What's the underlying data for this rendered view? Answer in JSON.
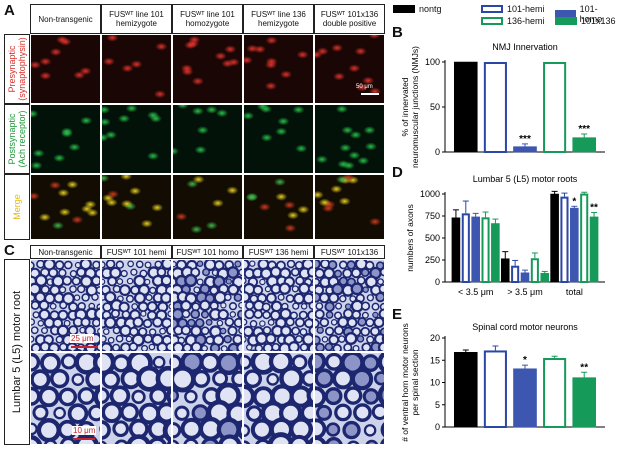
{
  "panel_letters": {
    "a": "A",
    "b": "B",
    "c": "C",
    "d": "D",
    "e": "E"
  },
  "panelA": {
    "columns": [
      "Non-transgenic",
      "FUSᵂᵀ line 101 hemizygote",
      "FUSᵂᵀ line 101 homozygote",
      "FUSᵂᵀ line 136 hemizygote",
      "FUSᵂᵀ 101x136 double positive"
    ],
    "rows": [
      {
        "label": "Presynaptic (synaptophysin)",
        "color": "#d8312b"
      },
      {
        "label": "Postsynaptic (Ach receptor)",
        "color": "#1f9b3a"
      },
      {
        "label": "Merge",
        "color": "#e8b90c"
      }
    ],
    "scale_bar": "50 μm"
  },
  "panelC": {
    "columns": [
      "Non-transgenic",
      "FUSᵂᵀ 101 hemi",
      "FUSᵂᵀ 101 homo",
      "FUSᵂᵀ 136 hemi",
      "FUSᵂᵀ 101x136"
    ],
    "row_label": "Lumbar 5 (L5) motor root",
    "scale_bar_top": "25 μm",
    "scale_bar_bottom": "10 μm"
  },
  "legend": [
    {
      "name": "nontg",
      "fill": "#000000",
      "stroke": "#000000"
    },
    {
      "name": "101-hemi",
      "fill": "#ffffff",
      "stroke": "#2a46a6"
    },
    {
      "name": "101-homo",
      "fill": "#3d56b0",
      "stroke": "#3d56b0"
    },
    {
      "name": "136-hemi",
      "fill": "#ffffff",
      "stroke": "#169a5a"
    },
    {
      "name": "101x136",
      "fill": "#169a5a",
      "stroke": "#169a5a"
    }
  ],
  "chart_data": [
    {
      "id": "B",
      "type": "bar",
      "title": "NMJ Innervation",
      "ylabel": "% of innervated neuromuscular junctions (NMJs)",
      "ylim": [
        0,
        100
      ],
      "yticks": [
        0,
        50,
        100
      ],
      "series": [
        {
          "name": "nontg",
          "values": [
            100
          ],
          "err": [
            0
          ]
        },
        {
          "name": "101-hemi",
          "values": [
            100
          ],
          "err": [
            0
          ]
        },
        {
          "name": "101-homo",
          "values": [
            6
          ],
          "err": [
            3
          ],
          "sig": "***"
        },
        {
          "name": "136-hemi",
          "values": [
            100
          ],
          "err": [
            0
          ]
        },
        {
          "name": "101x136",
          "values": [
            16
          ],
          "err": [
            4
          ],
          "sig": "***"
        }
      ]
    },
    {
      "id": "D",
      "type": "bar",
      "title": "Lumbar 5 (L5) motor roots",
      "ylabel": "numbers of axons",
      "categories": [
        "< 3.5 μm",
        "> 3.5 μm",
        "total"
      ],
      "ylim": [
        0,
        1000
      ],
      "yticks": [
        0,
        250,
        500,
        750,
        1000
      ],
      "series": [
        {
          "name": "nontg",
          "values": [
            730,
            265,
            1000
          ],
          "err": [
            90,
            80,
            30
          ]
        },
        {
          "name": "101-hemi",
          "values": [
            780,
            185,
            970
          ],
          "err": [
            140,
            60,
            40
          ]
        },
        {
          "name": "101-homo",
          "values": [
            740,
            105,
            840
          ],
          "err": [
            40,
            30,
            20
          ],
          "sig": [
            "",
            "",
            "*"
          ]
        },
        {
          "name": "136-hemi",
          "values": [
            735,
            270,
            1005
          ],
          "err": [
            60,
            60,
            15
          ]
        },
        {
          "name": "101x136",
          "values": [
            665,
            100,
            740
          ],
          "err": [
            50,
            20,
            50
          ],
          "sig": [
            "",
            "",
            "**"
          ]
        }
      ]
    },
    {
      "id": "E",
      "type": "bar",
      "title": "Spinal cord motor neurons",
      "ylabel": "# of ventral horn motor neurons per spinal section",
      "ylim": [
        0,
        20
      ],
      "yticks": [
        0,
        5,
        10,
        15,
        20
      ],
      "series": [
        {
          "name": "nontg",
          "values": [
            16.8
          ],
          "err": [
            0.5
          ]
        },
        {
          "name": "101-hemi",
          "values": [
            17.2
          ],
          "err": [
            1.0
          ]
        },
        {
          "name": "101-homo",
          "values": [
            13.1
          ],
          "err": [
            0.8
          ],
          "sig": "*"
        },
        {
          "name": "136-hemi",
          "values": [
            15.5
          ],
          "err": [
            0.4
          ]
        },
        {
          "name": "101x136",
          "values": [
            11.1
          ],
          "err": [
            1.2
          ],
          "sig": "**"
        }
      ]
    }
  ]
}
